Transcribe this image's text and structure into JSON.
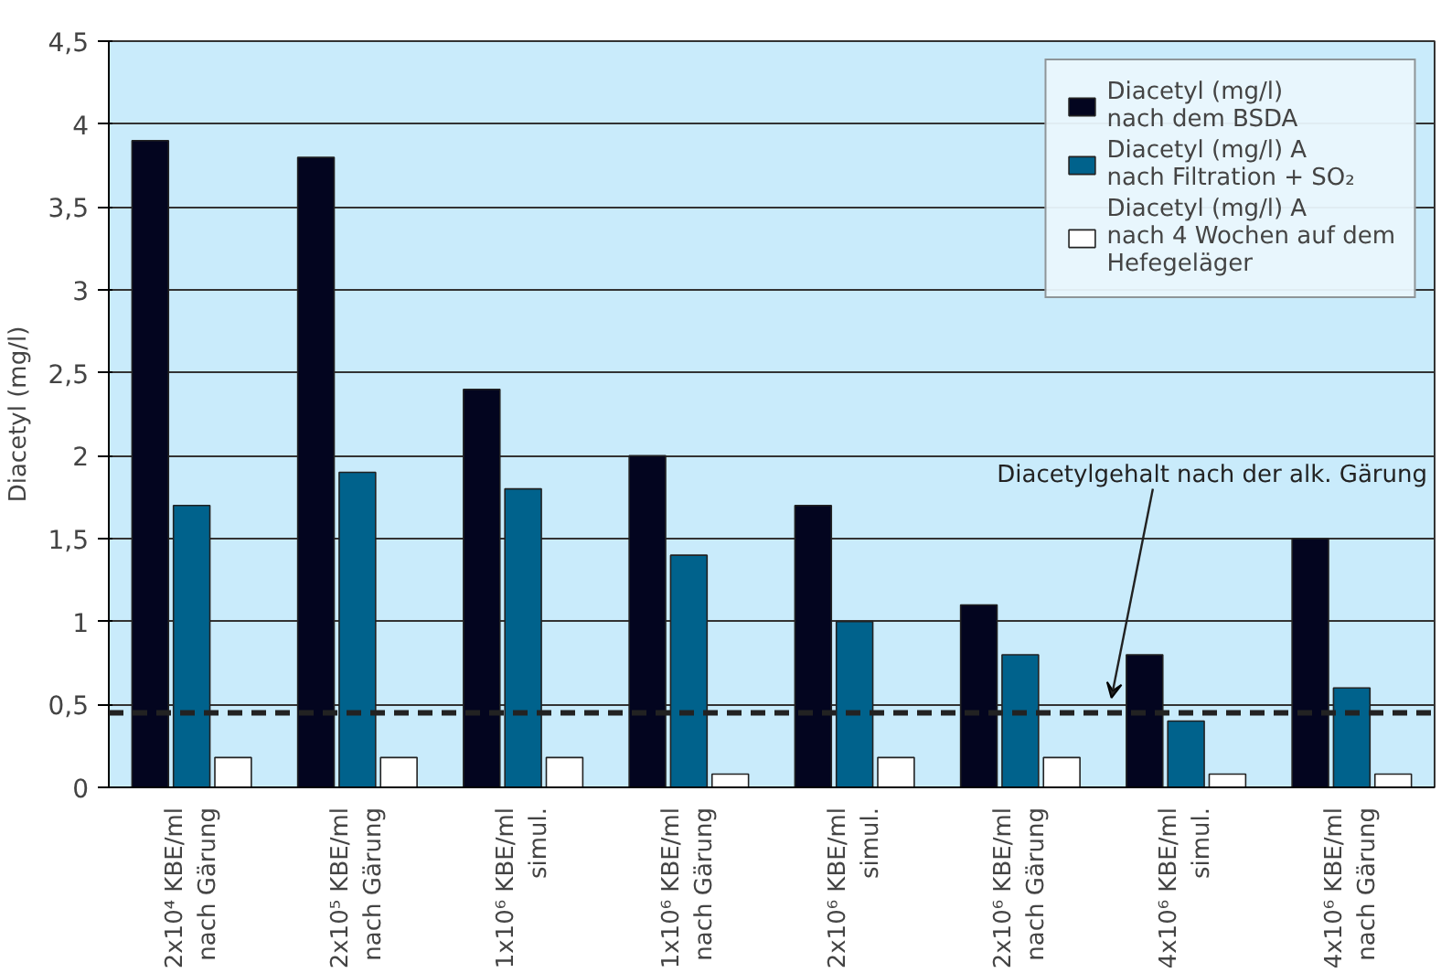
{
  "chart_data": {
    "type": "bar",
    "ylabel": "Diacetyl (mg/l)",
    "categories": [
      "2x10⁴ KBE/ml\nnach Gärung",
      "2x10⁵ KBE/ml\nnach Gärung",
      "1x10⁶ KBE/ml\nsimul.",
      "1x10⁶ KBE/ml\nnach Gärung",
      "2x10⁶ KBE/ml\nsimul.",
      "2x10⁶ KBE/ml\nnach Gärung",
      "4x10⁶ KBE/ml\nsimul.",
      "4x10⁶ KBE/ml\nnach Gärung"
    ],
    "series": [
      {
        "name": "Diacetyl (mg/l)\nnach dem BSDA",
        "color": "#03051f",
        "values": [
          3.9,
          3.8,
          2.4,
          2.0,
          1.7,
          1.1,
          0.8,
          1.5
        ]
      },
      {
        "name": "Diacetyl (mg/l) A\nnach Filtration + SO₂",
        "color": "#00628c",
        "values": [
          1.7,
          1.9,
          1.8,
          1.4,
          1.0,
          0.8,
          0.4,
          0.6
        ]
      },
      {
        "name": "Diacetyl (mg/l) A\nnach 4 Wochen auf dem\nHefegeläger",
        "color": "#ffffff",
        "values": [
          0.18,
          0.18,
          0.18,
          0.08,
          0.18,
          0.18,
          0.08,
          0.08
        ]
      }
    ],
    "ylim": [
      0,
      4.5
    ],
    "yticks": [
      0,
      {
        "value": 0.5,
        "label": "0,5"
      },
      1,
      {
        "value": 1.5,
        "label": "1,5"
      },
      2,
      {
        "value": 2.5,
        "label": "2,5"
      },
      3,
      {
        "value": 3.5,
        "label": "3,5"
      },
      4,
      {
        "value": 4.5,
        "label": "4,5"
      }
    ],
    "grid": "y",
    "legend": "top right",
    "ref_lines": [
      {
        "axis": "y",
        "value": 0.45,
        "label": "Diacetylgehalt nach der alk. Gärung",
        "color": "#222222",
        "line_style": "dashed"
      }
    ]
  }
}
